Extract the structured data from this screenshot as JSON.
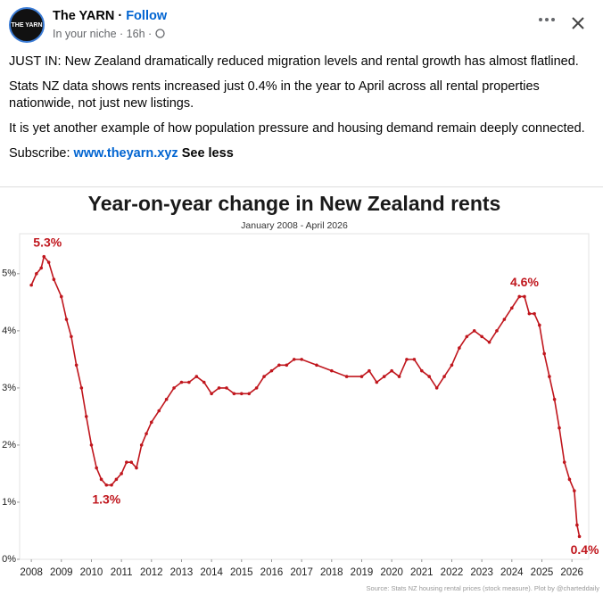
{
  "post": {
    "author": "The YARN",
    "follow": "Follow",
    "meta": "In your niche · 16h ·",
    "avatar_text": "THE YARN",
    "paragraphs": [
      "JUST IN: New Zealand dramatically reduced migration levels and rental growth has almost flatlined.",
      "Stats NZ data shows rents increased just 0.4% in the year to April across all rental properties nationwide, not just new listings.",
      "It is yet another example of how population pressure and housing demand remain deeply connected."
    ],
    "subscribe": "Subscribe:",
    "link": "www.theyarn.xyz",
    "see_less": "See less"
  },
  "chart_data": {
    "type": "line",
    "title": "Year-on-year change in New Zealand rents",
    "subtitle": "January 2008 - April 2026",
    "source": "Source: Stats NZ housing rental prices (stock measure). Plot by @charteddaily",
    "x": [
      2008.0,
      2008.17,
      2008.33,
      2008.42,
      2008.58,
      2008.75,
      2009.0,
      2009.17,
      2009.33,
      2009.5,
      2009.67,
      2009.83,
      2010.0,
      2010.17,
      2010.33,
      2010.5,
      2010.67,
      2010.83,
      2011.0,
      2011.17,
      2011.33,
      2011.5,
      2011.67,
      2011.83,
      2012.0,
      2012.25,
      2012.5,
      2012.75,
      2013.0,
      2013.25,
      2013.5,
      2013.75,
      2014.0,
      2014.25,
      2014.5,
      2014.75,
      2015.0,
      2015.25,
      2015.5,
      2015.75,
      2016.0,
      2016.25,
      2016.5,
      2016.75,
      2017.0,
      2017.5,
      2018.0,
      2018.5,
      2019.0,
      2019.25,
      2019.5,
      2019.75,
      2020.0,
      2020.25,
      2020.5,
      2020.75,
      2021.0,
      2021.25,
      2021.5,
      2021.75,
      2022.0,
      2022.25,
      2022.5,
      2022.75,
      2023.0,
      2023.25,
      2023.5,
      2023.75,
      2024.0,
      2024.25,
      2024.42,
      2024.58,
      2024.75,
      2024.92,
      2025.08,
      2025.25,
      2025.42,
      2025.58,
      2025.75,
      2025.92,
      2026.08,
      2026.17,
      2026.25
    ],
    "series": [
      {
        "name": "Year-on-year change",
        "color": "#c0161d",
        "values": [
          4.8,
          5.0,
          5.1,
          5.3,
          5.2,
          4.9,
          4.6,
          4.2,
          3.9,
          3.4,
          3.0,
          2.5,
          2.0,
          1.6,
          1.4,
          1.3,
          1.3,
          1.4,
          1.5,
          1.7,
          1.7,
          1.6,
          2.0,
          2.2,
          2.4,
          2.6,
          2.8,
          3.0,
          3.1,
          3.1,
          3.2,
          3.1,
          2.9,
          3.0,
          3.0,
          2.9,
          2.9,
          2.9,
          3.0,
          3.2,
          3.3,
          3.4,
          3.4,
          3.5,
          3.5,
          3.4,
          3.3,
          3.2,
          3.2,
          3.3,
          3.1,
          3.2,
          3.3,
          3.2,
          3.5,
          3.5,
          3.3,
          3.2,
          3.0,
          3.2,
          3.4,
          3.7,
          3.9,
          4.0,
          3.9,
          3.8,
          4.0,
          4.2,
          4.4,
          4.6,
          4.6,
          4.3,
          4.3,
          4.1,
          3.6,
          3.2,
          2.8,
          2.3,
          1.7,
          1.4,
          1.2,
          0.6,
          0.4
        ]
      }
    ],
    "annotations": [
      {
        "label": "5.3%",
        "x": 2008.42,
        "value": 5.3
      },
      {
        "label": "1.3%",
        "x": 2010.5,
        "value": 1.3
      },
      {
        "label": "4.6%",
        "x": 2024.42,
        "value": 4.6
      },
      {
        "label": "0.4%",
        "x": 2026.25,
        "value": 0.4
      }
    ],
    "xlim": [
      2007.61,
      2026.56
    ],
    "ylim": [
      0,
      5.7
    ],
    "xticks": [
      2008,
      2009,
      2010,
      2011,
      2012,
      2013,
      2014,
      2015,
      2016,
      2017,
      2018,
      2019,
      2020,
      2021,
      2022,
      2023,
      2024,
      2025,
      2026
    ],
    "yticks": [
      {
        "value": 0,
        "label": "0%"
      },
      {
        "value": 1,
        "label": "1%"
      },
      {
        "value": 2,
        "label": "2%"
      },
      {
        "value": 3,
        "label": "3%"
      },
      {
        "value": 4,
        "label": "4%"
      },
      {
        "value": 5,
        "label": "5%"
      }
    ],
    "grid": false
  }
}
